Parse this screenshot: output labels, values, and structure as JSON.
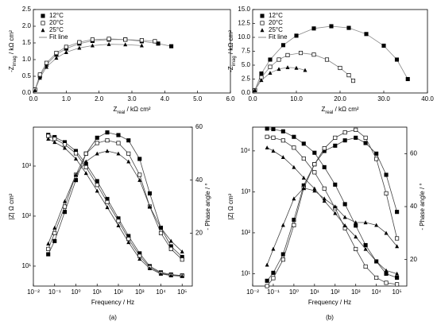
{
  "chart_data": [
    {
      "type": "scatter",
      "x_label": [
        "Z",
        "real",
        " / kΩ cm²"
      ],
      "y_label": [
        "-Z",
        "imag",
        " / kΩ cm²"
      ],
      "xlim": [
        0,
        6
      ],
      "ylim": [
        0,
        2.5
      ],
      "xticks": [
        {
          "value": 0,
          "label": "0.0"
        },
        {
          "value": 1,
          "label": "1.0"
        },
        {
          "value": 2,
          "label": "2.0"
        },
        {
          "value": 3,
          "label": "3.0"
        },
        {
          "value": 4,
          "label": "4.0"
        },
        {
          "value": 5,
          "label": "5.0"
        },
        {
          "value": 6,
          "label": "6.0"
        }
      ],
      "yticks": [
        {
          "value": 0,
          "label": "0.0"
        },
        {
          "value": 0.5,
          "label": "0.5"
        },
        {
          "value": 1,
          "label": "1.0"
        },
        {
          "value": 1.5,
          "label": "1.5"
        },
        {
          "value": 2,
          "label": "2.0"
        },
        {
          "value": 2.5,
          "label": "2.5"
        }
      ],
      "legend": "upper left",
      "fit_line": {
        "label": "Fit line",
        "color": "#888888"
      },
      "series": [
        {
          "name": "12°C",
          "color": "#000000",
          "marker": "square",
          "x": [
            0.05,
            0.2,
            0.4,
            0.7,
            1.0,
            1.4,
            1.8,
            2.3,
            2.8,
            3.3,
            3.8,
            4.2
          ],
          "values": [
            0.1,
            0.5,
            0.85,
            1.15,
            1.33,
            1.48,
            1.56,
            1.6,
            1.6,
            1.55,
            1.48,
            1.4
          ]
        },
        {
          "name": "20°C",
          "color": "#000000",
          "marker": "square-open",
          "x": [
            0.05,
            0.2,
            0.4,
            0.7,
            1.0,
            1.4,
            1.8,
            2.3,
            2.8,
            3.3,
            3.7
          ],
          "values": [
            0.1,
            0.55,
            0.9,
            1.2,
            1.38,
            1.52,
            1.6,
            1.62,
            1.6,
            1.58,
            1.55
          ]
        },
        {
          "name": "25°C",
          "color": "#000000",
          "marker": "triangle",
          "x": [
            0.05,
            0.2,
            0.4,
            0.7,
            1.0,
            1.4,
            1.8,
            2.3,
            2.8,
            3.3
          ],
          "values": [
            0.08,
            0.45,
            0.78,
            1.05,
            1.22,
            1.35,
            1.42,
            1.46,
            1.45,
            1.42
          ]
        }
      ]
    },
    {
      "type": "scatter",
      "x_label": [
        "Z",
        "real",
        " / kΩ cm²"
      ],
      "y_label": [
        "-Z",
        "imag",
        " / kΩ cm²"
      ],
      "xlim": [
        0,
        40
      ],
      "ylim": [
        0,
        15
      ],
      "xticks": [
        {
          "value": 0,
          "label": "0.0"
        },
        {
          "value": 10,
          "label": "10.0"
        },
        {
          "value": 20,
          "label": "20.0"
        },
        {
          "value": 30,
          "label": "30.0"
        },
        {
          "value": 40,
          "label": "40.0"
        }
      ],
      "yticks": [
        {
          "value": 0,
          "label": "0.0"
        },
        {
          "value": 2.5,
          "label": "2.5"
        },
        {
          "value": 5,
          "label": "5.0"
        },
        {
          "value": 7.5,
          "label": "7.5"
        },
        {
          "value": 10,
          "label": "10.0"
        },
        {
          "value": 12.5,
          "label": "12.5"
        },
        {
          "value": 15,
          "label": "15.0"
        }
      ],
      "legend": "upper left",
      "fit_line": {
        "label": "Fit line",
        "color": "#888888"
      },
      "series": [
        {
          "name": "12°C",
          "color": "#000000",
          "marker": "square",
          "x": [
            0.5,
            2,
            4,
            7,
            10,
            14,
            18,
            22,
            26,
            30,
            33,
            35.5
          ],
          "values": [
            0.5,
            3.5,
            6,
            8.6,
            10.3,
            11.6,
            12,
            11.7,
            10.6,
            8.5,
            6,
            2.5
          ]
        },
        {
          "name": "20°C",
          "color": "#000000",
          "marker": "square-open",
          "x": [
            0.5,
            2,
            4,
            6,
            8,
            11,
            14,
            17,
            20,
            22,
            23
          ],
          "values": [
            0.5,
            2.8,
            4.7,
            6,
            6.8,
            7.2,
            6.9,
            6,
            4.5,
            3.2,
            2.2
          ]
        },
        {
          "name": "25°C",
          "color": "#000000",
          "marker": "triangle",
          "x": [
            0.5,
            2,
            4,
            6,
            8,
            10,
            12
          ],
          "values": [
            0.5,
            2.3,
            3.6,
            4.3,
            4.6,
            4.5,
            4.1
          ]
        }
      ]
    },
    {
      "type": "scatter",
      "x_label": "Frequency / Hz",
      "y_label": "|Z| Ω cm²",
      "y2_label": "- Phase angle / °",
      "panel": "(a)",
      "xlog": true,
      "ylog": true,
      "xlim": [
        0.01,
        300000
      ],
      "ylim": [
        4,
        6000
      ],
      "y2lim": [
        0,
        60
      ],
      "xticks": [
        {
          "value": 0.01,
          "label": "10⁻²"
        },
        {
          "value": 0.1,
          "label": "10⁻¹"
        },
        {
          "value": 1,
          "label": "10⁰"
        },
        {
          "value": 10,
          "label": "10¹"
        },
        {
          "value": 100,
          "label": "10²"
        },
        {
          "value": 1000,
          "label": "10³"
        },
        {
          "value": 10000,
          "label": "10⁴"
        },
        {
          "value": 100000,
          "label": "10⁵"
        }
      ],
      "yticks": [
        {
          "value": 10,
          "label": "10¹"
        },
        {
          "value": 100,
          "label": "10²"
        },
        {
          "value": 1000,
          "label": "10³"
        }
      ],
      "y2ticks": [
        20,
        40,
        60
      ],
      "fit_line": {
        "color": "#444444"
      },
      "x": [
        0.05,
        0.1,
        0.3,
        1,
        3,
        10,
        30,
        100,
        300,
        1000,
        3000,
        10000,
        30000,
        100000
      ],
      "series": [
        {
          "color": "#000000",
          "marker": "square",
          "values": [
            4200,
            3800,
            3000,
            2000,
            1100,
            500,
            220,
            90,
            40,
            18,
            10,
            7.5,
            6.8,
            6.5
          ]
        },
        {
          "color": "#000000",
          "marker": "square-open",
          "values": [
            4000,
            3500,
            2700,
            1800,
            950,
            420,
            190,
            80,
            35,
            16,
            9.5,
            7.2,
            6.6,
            6.4
          ]
        },
        {
          "color": "#000000",
          "marker": "triangle",
          "values": [
            3500,
            3000,
            2300,
            1400,
            720,
            320,
            150,
            65,
            30,
            14,
            9,
            7,
            6.5,
            6.3
          ]
        },
        {
          "color": "#000000",
          "marker": "square",
          "axis": "y2",
          "values": [
            12,
            17,
            28,
            40,
            50,
            56,
            58,
            57,
            55,
            48,
            35,
            22,
            15,
            11
          ]
        },
        {
          "color": "#000000",
          "marker": "square-open",
          "axis": "y2",
          "values": [
            14,
            20,
            30,
            42,
            50,
            54,
            55,
            54,
            50,
            42,
            30,
            20,
            14,
            10
          ]
        },
        {
          "color": "#000000",
          "marker": "triangle",
          "axis": "y2",
          "values": [
            16,
            22,
            32,
            42,
            47,
            50,
            51,
            50,
            47,
            40,
            30,
            22,
            17,
            13
          ]
        }
      ]
    },
    {
      "type": "scatter",
      "x_label": "Frequency / Hz",
      "y_label": "|Z| Ω cm²",
      "y2_label": "- Phase angle / °",
      "panel": "(b)",
      "xlog": true,
      "ylog": true,
      "xlim": [
        0.01,
        300000
      ],
      "ylim": [
        5,
        38000
      ],
      "y2lim": [
        10,
        70
      ],
      "xticks": [
        {
          "value": 0.01,
          "label": "10⁻²"
        },
        {
          "value": 0.1,
          "label": "10⁻¹"
        },
        {
          "value": 1,
          "label": "10⁰"
        },
        {
          "value": 10,
          "label": "10¹"
        },
        {
          "value": 100,
          "label": "10²"
        },
        {
          "value": 1000,
          "label": "10³"
        },
        {
          "value": 10000,
          "label": "10⁴"
        },
        {
          "value": 100000,
          "label": "10⁵"
        }
      ],
      "yticks": [
        {
          "value": 10,
          "label": "10¹"
        },
        {
          "value": 100,
          "label": "10²"
        },
        {
          "value": 1000,
          "label": "10³"
        },
        {
          "value": 10000,
          "label": "10⁴"
        }
      ],
      "y2ticks": [
        20,
        40,
        60
      ],
      "fit_line": {
        "color": "#444444"
      },
      "x": [
        0.05,
        0.1,
        0.3,
        1,
        3,
        10,
        30,
        100,
        300,
        1000,
        3000,
        10000,
        30000,
        100000
      ],
      "series": [
        {
          "color": "#000000",
          "marker": "square",
          "values": [
            35000,
            34000,
            30000,
            22000,
            15000,
            9000,
            4000,
            1500,
            500,
            150,
            50,
            20,
            10,
            8
          ]
        },
        {
          "color": "#000000",
          "marker": "square-open",
          "values": [
            22000,
            21000,
            18000,
            12000,
            6500,
            3000,
            1200,
            400,
            130,
            40,
            15,
            8,
            6,
            5.5
          ]
        },
        {
          "color": "#000000",
          "marker": "triangle",
          "values": [
            12000,
            10000,
            7000,
            4000,
            2200,
            1200,
            600,
            300,
            150,
            80,
            40,
            20,
            12,
            10
          ]
        },
        {
          "color": "#000000",
          "marker": "square",
          "axis": "y2",
          "values": [
            12,
            15,
            22,
            35,
            48,
            56,
            61,
            63,
            65,
            66,
            64,
            60,
            52,
            38
          ]
        },
        {
          "color": "#000000",
          "marker": "square-open",
          "axis": "y2",
          "values": [
            10,
            13,
            20,
            33,
            47,
            56,
            62,
            66,
            68,
            69,
            66,
            58,
            45,
            28
          ]
        },
        {
          "color": "#000000",
          "marker": "triangle",
          "axis": "y2",
          "values": [
            18,
            24,
            33,
            43,
            47,
            46,
            43,
            40,
            36,
            34,
            34,
            33,
            30,
            25
          ]
        }
      ]
    }
  ]
}
